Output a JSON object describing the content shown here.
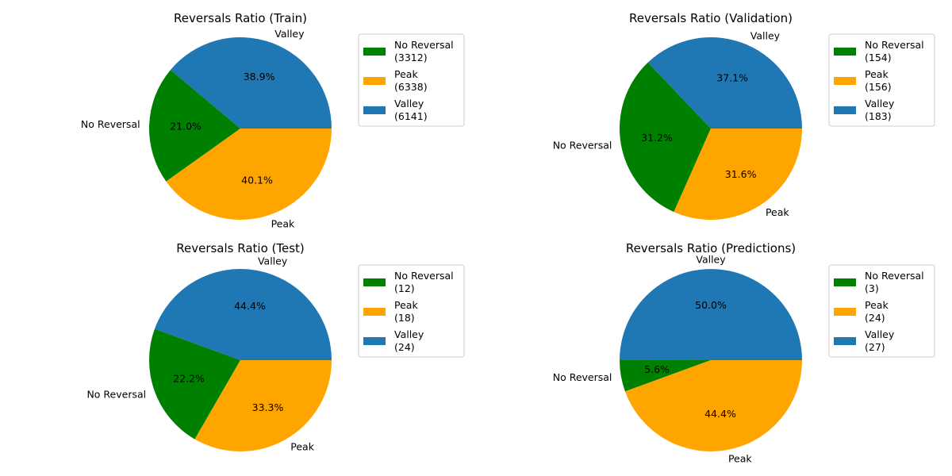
{
  "chart_data": [
    {
      "type": "pie",
      "title": "Reversals Ratio (Train)",
      "labels": [
        "No Reversal",
        "Peak",
        "Valley"
      ],
      "values": [
        3312,
        6338,
        6141
      ],
      "percent_labels": [
        "21.0%",
        "40.1%",
        "38.9%"
      ],
      "colors": [
        "#008000",
        "#ffa500",
        "#1f77b4"
      ],
      "legend_entries": [
        {
          "label": "No Reversal",
          "count": "(3312)"
        },
        {
          "label": "Peak",
          "count": "(6338)"
        },
        {
          "label": "Valley",
          "count": "(6141)"
        }
      ],
      "legend": "upper-right"
    },
    {
      "type": "pie",
      "title": "Reversals Ratio (Validation)",
      "labels": [
        "No Reversal",
        "Peak",
        "Valley"
      ],
      "values": [
        154,
        156,
        183
      ],
      "percent_labels": [
        "31.2%",
        "31.6%",
        "37.1%"
      ],
      "colors": [
        "#008000",
        "#ffa500",
        "#1f77b4"
      ],
      "legend_entries": [
        {
          "label": "No Reversal",
          "count": "(154)"
        },
        {
          "label": "Peak",
          "count": "(156)"
        },
        {
          "label": "Valley",
          "count": "(183)"
        }
      ],
      "legend": "upper-right"
    },
    {
      "type": "pie",
      "title": "Reversals Ratio (Test)",
      "labels": [
        "No Reversal",
        "Peak",
        "Valley"
      ],
      "values": [
        12,
        18,
        24
      ],
      "percent_labels": [
        "22.2%",
        "33.3%",
        "44.4%"
      ],
      "colors": [
        "#008000",
        "#ffa500",
        "#1f77b4"
      ],
      "legend_entries": [
        {
          "label": "No Reversal",
          "count": "(12)"
        },
        {
          "label": "Peak",
          "count": "(18)"
        },
        {
          "label": "Valley",
          "count": "(24)"
        }
      ],
      "legend": "upper-right"
    },
    {
      "type": "pie",
      "title": "Reversals Ratio (Predictions)",
      "labels": [
        "No Reversal",
        "Peak",
        "Valley"
      ],
      "values": [
        3,
        24,
        27
      ],
      "percent_labels": [
        "5.6%",
        "44.4%",
        "50.0%"
      ],
      "colors": [
        "#008000",
        "#ffa500",
        "#1f77b4"
      ],
      "legend_entries": [
        {
          "label": "No Reversal",
          "count": "(3)"
        },
        {
          "label": "Peak",
          "count": "(24)"
        },
        {
          "label": "Valley",
          "count": "(27)"
        }
      ],
      "legend": "upper-right"
    }
  ]
}
